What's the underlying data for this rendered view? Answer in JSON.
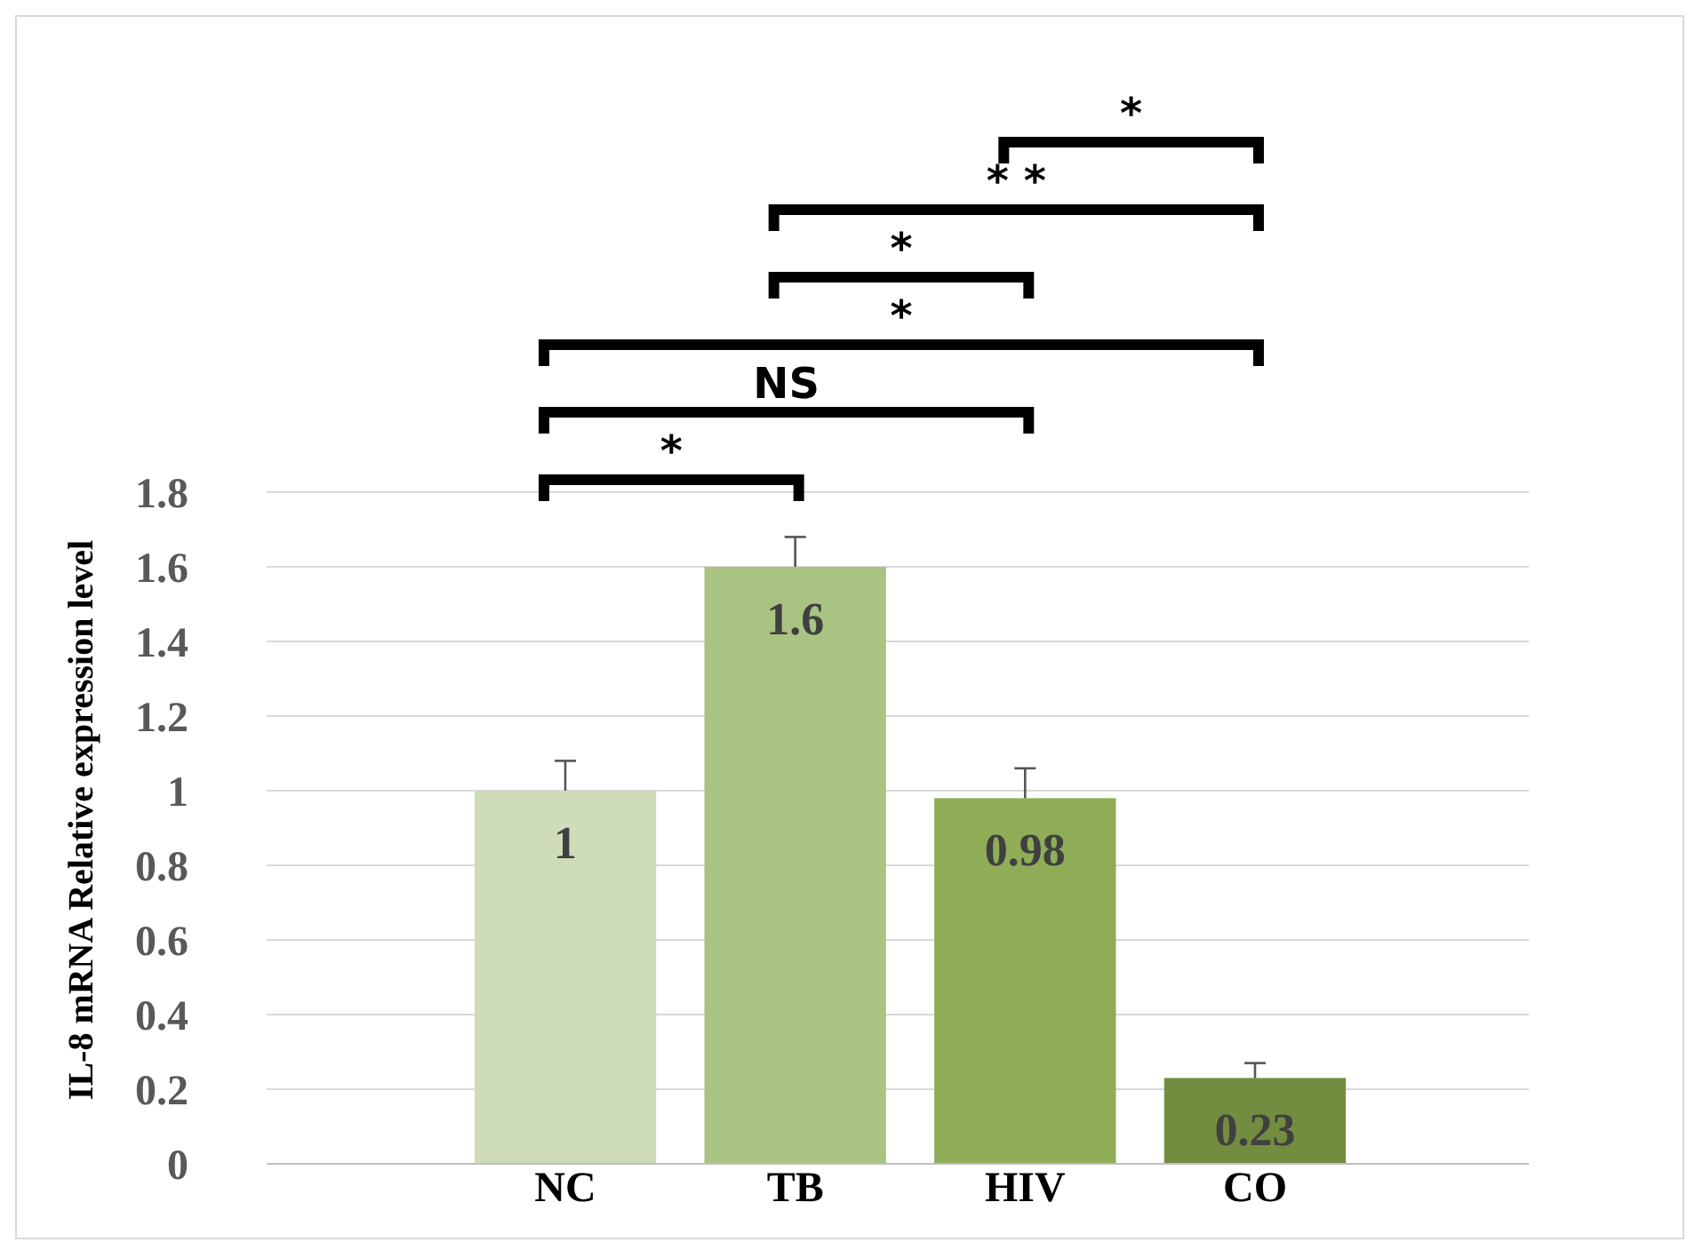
{
  "chart_data": {
    "type": "bar",
    "ylabel": "IL-8 mRNA Relative expression level",
    "categories": [
      "NC",
      "TB",
      "HIV",
      "CO"
    ],
    "values": [
      1,
      1.6,
      0.98,
      0.23
    ],
    "colors": [
      "#cfdcb9",
      "#a9c383",
      "#8fad57",
      "#728d40"
    ],
    "errors": [
      0.08,
      0.08,
      0.08,
      0.04
    ],
    "ylim": [
      0,
      1.8
    ],
    "yticks": [
      0,
      0.2,
      0.4,
      0.6,
      0.8,
      1,
      1.2,
      1.4,
      1.6,
      1.8
    ],
    "grid": "y",
    "data_labels": true,
    "annotations": [
      "*",
      "* *",
      "*",
      "*",
      "NS",
      "*"
    ]
  }
}
